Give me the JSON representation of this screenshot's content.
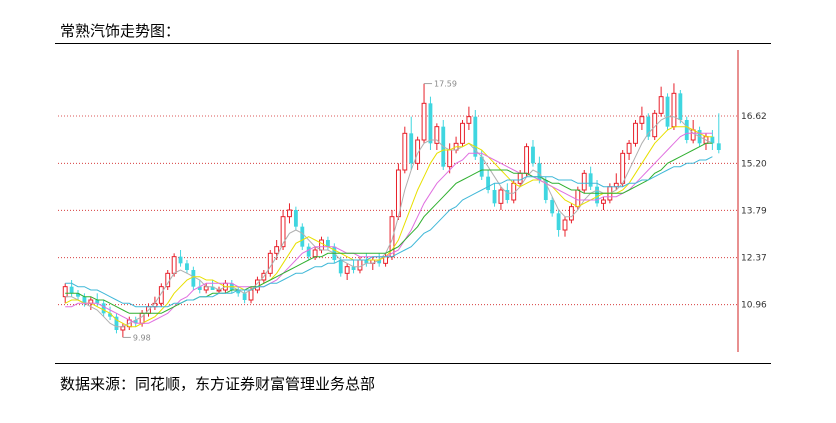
{
  "header": {
    "title": "常熟汽饰走势图："
  },
  "footer": {
    "source": "数据来源：同花顺，东方证券财富管理业务总部"
  },
  "colors": {
    "up": "#e8202a",
    "down": "#3fd6e0",
    "grid": "#d02020",
    "ma_white": "#b0b0b0",
    "ma_yellow": "#e8e000",
    "ma_magenta": "#e070e0",
    "ma_green": "#30b030",
    "ma_cyan": "#40b8d8"
  },
  "chart_data": {
    "type": "candlestick",
    "title": "",
    "ylim": [
      9.6,
      18.6
    ],
    "yticks": [
      "16.62",
      "15.20",
      "13.79",
      "12.37",
      "10.96"
    ],
    "yticks_values": [
      16.62,
      15.2,
      13.79,
      12.37,
      10.96
    ],
    "annotations": [
      {
        "label": "17.59",
        "value": 17.59,
        "index": 56
      },
      {
        "label": "9.98",
        "value": 9.98,
        "index": 9
      }
    ],
    "ohlc": [
      [
        11.2,
        11.6,
        11.0,
        11.5
      ],
      [
        11.5,
        11.7,
        11.2,
        11.3
      ],
      [
        11.3,
        11.4,
        11.1,
        11.2
      ],
      [
        11.2,
        11.3,
        10.9,
        11.0
      ],
      [
        11.0,
        11.2,
        10.8,
        11.1
      ],
      [
        11.1,
        11.3,
        10.9,
        11.0
      ],
      [
        11.0,
        11.1,
        10.6,
        10.7
      ],
      [
        10.7,
        10.9,
        10.5,
        10.6
      ],
      [
        10.6,
        10.7,
        10.1,
        10.2
      ],
      [
        10.2,
        10.4,
        9.98,
        10.3
      ],
      [
        10.3,
        10.6,
        10.2,
        10.5
      ],
      [
        10.5,
        10.6,
        10.3,
        10.4
      ],
      [
        10.4,
        10.8,
        10.3,
        10.7
      ],
      [
        10.7,
        11.0,
        10.6,
        10.9
      ],
      [
        10.9,
        11.2,
        10.8,
        11.0
      ],
      [
        11.0,
        11.6,
        10.9,
        11.5
      ],
      [
        11.5,
        12.0,
        11.4,
        11.9
      ],
      [
        11.9,
        12.5,
        11.8,
        12.4
      ],
      [
        12.4,
        12.6,
        12.1,
        12.2
      ],
      [
        12.2,
        12.3,
        11.9,
        12.0
      ],
      [
        12.0,
        12.1,
        11.4,
        11.5
      ],
      [
        11.5,
        11.7,
        11.3,
        11.4
      ],
      [
        11.4,
        11.6,
        11.3,
        11.5
      ],
      [
        11.5,
        11.7,
        11.4,
        11.4
      ],
      [
        11.4,
        11.5,
        11.3,
        11.4
      ],
      [
        11.4,
        11.7,
        11.3,
        11.6
      ],
      [
        11.6,
        11.7,
        11.3,
        11.4
      ],
      [
        11.4,
        11.5,
        11.2,
        11.3
      ],
      [
        11.3,
        11.4,
        11.0,
        11.1
      ],
      [
        11.1,
        11.5,
        11.0,
        11.4
      ],
      [
        11.4,
        11.8,
        11.3,
        11.7
      ],
      [
        11.7,
        12.0,
        11.6,
        11.9
      ],
      [
        11.9,
        12.6,
        11.8,
        12.5
      ],
      [
        12.5,
        12.9,
        12.3,
        12.7
      ],
      [
        12.7,
        13.8,
        12.6,
        13.6
      ],
      [
        13.6,
        14.0,
        13.4,
        13.8
      ],
      [
        13.8,
        13.9,
        13.2,
        13.3
      ],
      [
        13.3,
        13.4,
        12.6,
        12.7
      ],
      [
        12.7,
        12.8,
        12.3,
        12.4
      ],
      [
        12.4,
        12.7,
        12.3,
        12.6
      ],
      [
        12.6,
        13.0,
        12.5,
        12.9
      ],
      [
        12.9,
        13.0,
        12.6,
        12.7
      ],
      [
        12.7,
        12.8,
        12.2,
        12.3
      ],
      [
        12.3,
        12.4,
        11.8,
        11.9
      ],
      [
        11.9,
        12.2,
        11.7,
        12.1
      ],
      [
        12.1,
        12.3,
        11.9,
        12.0
      ],
      [
        12.0,
        12.4,
        11.9,
        12.3
      ],
      [
        12.3,
        12.5,
        12.1,
        12.2
      ],
      [
        12.2,
        12.4,
        12.0,
        12.3
      ],
      [
        12.3,
        12.5,
        12.1,
        12.2
      ],
      [
        12.2,
        12.5,
        12.1,
        12.4
      ],
      [
        12.4,
        13.8,
        12.3,
        13.6
      ],
      [
        13.6,
        15.2,
        13.5,
        15.0
      ],
      [
        15.0,
        16.3,
        14.9,
        16.1
      ],
      [
        16.1,
        16.6,
        15.0,
        15.2
      ],
      [
        15.2,
        16.0,
        15.0,
        15.9
      ],
      [
        15.9,
        17.59,
        15.8,
        17.0
      ],
      [
        17.0,
        17.2,
        15.6,
        15.8
      ],
      [
        15.8,
        16.4,
        15.6,
        16.3
      ],
      [
        16.3,
        16.5,
        15.0,
        15.1
      ],
      [
        15.1,
        15.8,
        14.9,
        15.6
      ],
      [
        15.6,
        16.0,
        15.5,
        15.8
      ],
      [
        15.8,
        16.5,
        15.7,
        16.4
      ],
      [
        16.4,
        16.9,
        16.2,
        16.6
      ],
      [
        16.6,
        16.8,
        15.3,
        15.4
      ],
      [
        15.4,
        15.6,
        14.7,
        14.8
      ],
      [
        14.8,
        15.0,
        14.3,
        14.4
      ],
      [
        14.4,
        14.6,
        13.9,
        14.0
      ],
      [
        14.0,
        14.5,
        13.8,
        14.4
      ],
      [
        14.4,
        14.6,
        14.0,
        14.1
      ],
      [
        14.1,
        14.7,
        14.0,
        14.6
      ],
      [
        14.6,
        15.0,
        14.5,
        14.9
      ],
      [
        14.9,
        15.8,
        14.8,
        15.7
      ],
      [
        15.7,
        15.9,
        15.1,
        15.2
      ],
      [
        15.2,
        15.4,
        14.6,
        14.7
      ],
      [
        14.7,
        14.8,
        14.0,
        14.1
      ],
      [
        14.1,
        14.2,
        13.6,
        13.7
      ],
      [
        13.7,
        13.8,
        13.0,
        13.2
      ],
      [
        13.2,
        13.6,
        13.0,
        13.5
      ],
      [
        13.5,
        14.0,
        13.4,
        13.9
      ],
      [
        13.9,
        14.5,
        13.8,
        14.4
      ],
      [
        14.4,
        15.0,
        14.3,
        14.9
      ],
      [
        14.9,
        15.1,
        14.4,
        14.5
      ],
      [
        14.5,
        14.7,
        13.9,
        14.0
      ],
      [
        14.0,
        14.2,
        13.8,
        14.1
      ],
      [
        14.1,
        14.6,
        14.0,
        14.5
      ],
      [
        14.5,
        14.9,
        14.4,
        14.6
      ],
      [
        14.6,
        15.6,
        14.5,
        15.5
      ],
      [
        15.5,
        15.9,
        15.3,
        15.8
      ],
      [
        15.8,
        16.5,
        15.7,
        16.4
      ],
      [
        16.4,
        16.9,
        16.2,
        16.6
      ],
      [
        16.6,
        16.7,
        15.9,
        16.0
      ],
      [
        16.0,
        16.8,
        15.9,
        16.7
      ],
      [
        16.7,
        17.5,
        16.6,
        17.2
      ],
      [
        17.2,
        17.3,
        16.2,
        16.3
      ],
      [
        16.3,
        17.6,
        16.2,
        17.3
      ],
      [
        17.3,
        17.4,
        16.4,
        16.5
      ],
      [
        16.5,
        16.6,
        15.8,
        15.9
      ],
      [
        15.9,
        16.5,
        15.8,
        16.2
      ],
      [
        16.2,
        16.3,
        15.7,
        15.8
      ],
      [
        15.8,
        16.1,
        15.6,
        16.0
      ],
      [
        16.0,
        16.2,
        15.6,
        15.8
      ],
      [
        15.8,
        16.7,
        15.5,
        15.6
      ]
    ],
    "moving_averages": [
      {
        "color_key": "ma_white",
        "values": [
          11.2,
          11.2,
          11.1,
          11.0,
          10.9,
          10.8,
          10.6,
          10.4,
          10.3,
          10.3,
          10.4,
          10.5,
          10.6,
          10.8,
          11.0,
          11.3,
          11.6,
          11.9,
          12.0,
          11.9,
          11.8,
          11.7,
          11.5,
          11.5,
          11.4,
          11.5,
          11.5,
          11.4,
          11.3,
          11.4,
          11.6,
          11.8,
          12.1,
          12.4,
          12.8,
          13.1,
          13.2,
          13.1,
          12.9,
          12.7,
          12.6,
          12.6,
          12.5,
          12.3,
          12.2,
          12.1,
          12.1,
          12.2,
          12.2,
          12.3,
          12.5,
          12.9,
          13.6,
          14.4,
          15.0,
          15.5,
          15.8,
          15.9,
          15.9,
          15.7,
          15.6,
          15.6,
          15.7,
          15.8,
          15.6,
          15.4,
          15.1,
          14.8,
          14.5,
          14.3,
          14.3,
          14.5,
          14.8,
          15.0,
          14.9,
          14.6,
          14.2,
          13.8,
          13.6,
          13.6,
          13.8,
          14.1,
          14.3,
          14.4,
          14.3,
          14.3,
          14.4,
          14.6,
          15.0,
          15.4,
          15.8,
          16.1,
          16.3,
          16.5,
          16.6,
          16.6,
          16.5,
          16.3,
          16.1,
          16.0,
          15.9,
          15.8
        ]
      },
      {
        "color_key": "ma_yellow",
        "values": [
          11.0,
          11.1,
          11.1,
          11.0,
          11.0,
          10.9,
          10.8,
          10.7,
          10.5,
          10.4,
          10.3,
          10.3,
          10.4,
          10.5,
          10.6,
          10.8,
          11.0,
          11.3,
          11.5,
          11.7,
          11.8,
          11.8,
          11.7,
          11.7,
          11.6,
          11.5,
          11.5,
          11.5,
          11.4,
          11.4,
          11.5,
          11.6,
          11.7,
          11.9,
          12.2,
          12.5,
          12.8,
          12.9,
          13.0,
          12.9,
          12.8,
          12.7,
          12.6,
          12.5,
          12.4,
          12.3,
          12.3,
          12.3,
          12.3,
          12.3,
          12.4,
          12.6,
          12.9,
          13.4,
          13.9,
          14.4,
          14.8,
          15.2,
          15.5,
          15.6,
          15.6,
          15.7,
          15.7,
          15.8,
          15.7,
          15.6,
          15.4,
          15.2,
          15.0,
          14.8,
          14.6,
          14.5,
          14.6,
          14.7,
          14.7,
          14.6,
          14.5,
          14.3,
          14.1,
          14.0,
          13.9,
          14.0,
          14.1,
          14.2,
          14.3,
          14.3,
          14.3,
          14.4,
          14.6,
          14.9,
          15.2,
          15.5,
          15.8,
          16.0,
          16.2,
          16.3,
          16.3,
          16.3,
          16.2,
          16.1,
          16.0,
          16.0
        ]
      },
      {
        "color_key": "ma_magenta",
        "values": [
          10.9,
          10.9,
          11.0,
          11.0,
          11.0,
          11.0,
          10.9,
          10.8,
          10.7,
          10.6,
          10.5,
          10.4,
          10.4,
          10.4,
          10.5,
          10.6,
          10.7,
          10.9,
          11.1,
          11.2,
          11.4,
          11.5,
          11.6,
          11.6,
          11.6,
          11.6,
          11.6,
          11.5,
          11.5,
          11.5,
          11.5,
          11.5,
          11.6,
          11.7,
          11.9,
          12.1,
          12.3,
          12.5,
          12.6,
          12.7,
          12.7,
          12.7,
          12.7,
          12.6,
          12.5,
          12.5,
          12.4,
          12.4,
          12.4,
          12.4,
          12.4,
          12.5,
          12.6,
          12.9,
          13.2,
          13.6,
          14.0,
          14.3,
          14.6,
          14.8,
          15.0,
          15.2,
          15.3,
          15.5,
          15.5,
          15.5,
          15.4,
          15.3,
          15.2,
          15.1,
          15.0,
          14.9,
          14.9,
          14.8,
          14.7,
          14.6,
          14.5,
          14.4,
          14.3,
          14.2,
          14.1,
          14.1,
          14.1,
          14.1,
          14.2,
          14.2,
          14.2,
          14.3,
          14.4,
          14.6,
          14.8,
          15.0,
          15.2,
          15.4,
          15.6,
          15.8,
          16.0,
          16.1,
          16.1,
          16.1,
          16.1,
          16.1
        ]
      },
      {
        "color_key": "ma_green",
        "values": [
          11.3,
          11.3,
          11.3,
          11.2,
          11.2,
          11.1,
          11.1,
          11.0,
          10.9,
          10.8,
          10.7,
          10.7,
          10.7,
          10.7,
          10.7,
          10.7,
          10.8,
          10.9,
          11.0,
          11.1,
          11.1,
          11.2,
          11.2,
          11.3,
          11.3,
          11.3,
          11.4,
          11.4,
          11.4,
          11.5,
          11.5,
          11.6,
          11.7,
          11.8,
          11.9,
          12.0,
          12.1,
          12.2,
          12.3,
          12.4,
          12.4,
          12.5,
          12.5,
          12.5,
          12.5,
          12.5,
          12.5,
          12.5,
          12.5,
          12.5,
          12.5,
          12.6,
          12.7,
          12.9,
          13.1,
          13.3,
          13.6,
          13.8,
          14.0,
          14.2,
          14.4,
          14.6,
          14.7,
          14.8,
          14.9,
          15.0,
          15.0,
          15.0,
          15.0,
          15.0,
          14.9,
          14.9,
          14.9,
          14.8,
          14.8,
          14.7,
          14.6,
          14.6,
          14.5,
          14.4,
          14.4,
          14.3,
          14.3,
          14.3,
          14.3,
          14.3,
          14.3,
          14.3,
          14.4,
          14.5,
          14.6,
          14.7,
          14.9,
          15.0,
          15.2,
          15.3,
          15.4,
          15.5,
          15.6,
          15.7,
          15.8,
          15.8
        ]
      },
      {
        "color_key": "ma_cyan",
        "values": [
          11.6,
          11.6,
          11.5,
          11.5,
          11.4,
          11.4,
          11.3,
          11.2,
          11.1,
          11.0,
          11.0,
          10.9,
          10.9,
          10.9,
          10.9,
          10.9,
          10.9,
          11.0,
          11.0,
          11.1,
          11.1,
          11.2,
          11.2,
          11.2,
          11.3,
          11.3,
          11.3,
          11.4,
          11.4,
          11.4,
          11.5,
          11.5,
          11.6,
          11.6,
          11.7,
          11.8,
          11.9,
          11.9,
          12.0,
          12.1,
          12.1,
          12.2,
          12.2,
          12.3,
          12.3,
          12.3,
          12.3,
          12.3,
          12.4,
          12.4,
          12.4,
          12.4,
          12.5,
          12.6,
          12.7,
          12.9,
          13.1,
          13.2,
          13.4,
          13.6,
          13.8,
          13.9,
          14.1,
          14.2,
          14.3,
          14.4,
          14.5,
          14.6,
          14.6,
          14.7,
          14.7,
          14.7,
          14.8,
          14.8,
          14.8,
          14.8,
          14.8,
          14.7,
          14.7,
          14.7,
          14.6,
          14.6,
          14.6,
          14.6,
          14.5,
          14.5,
          14.5,
          14.5,
          14.6,
          14.6,
          14.7,
          14.7,
          14.8,
          14.9,
          15.0,
          15.1,
          15.1,
          15.2,
          15.2,
          15.3,
          15.3,
          15.4
        ]
      }
    ]
  }
}
